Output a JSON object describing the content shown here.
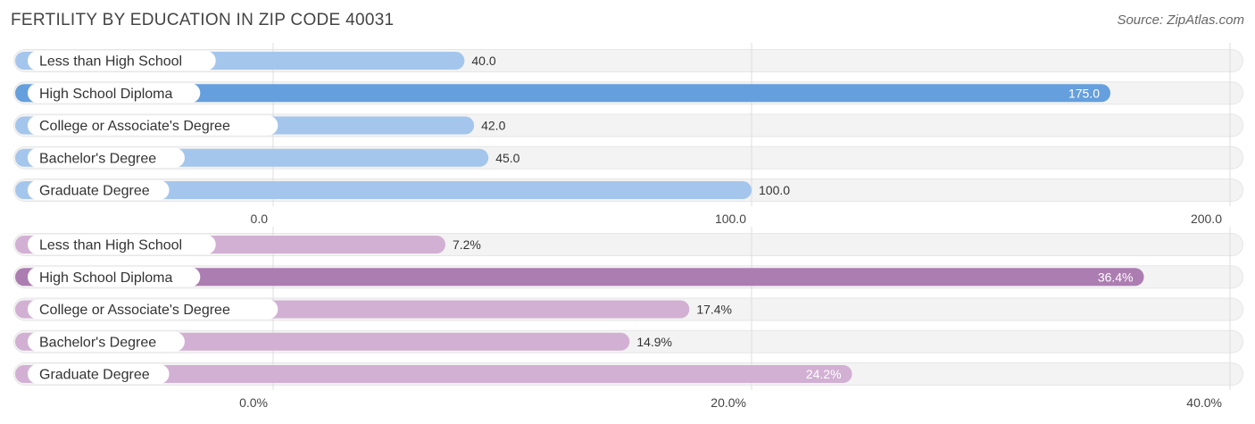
{
  "header": {
    "title": "FERTILITY BY EDUCATION IN ZIP CODE 40031",
    "source": "Source: ZipAtlas.com"
  },
  "chart_data": [
    {
      "type": "bar",
      "orientation": "horizontal",
      "categories": [
        "Less than High School",
        "High School Diploma",
        "College or Associate's Degree",
        "Bachelor's Degree",
        "Graduate Degree"
      ],
      "values": [
        40.0,
        175.0,
        42.0,
        45.0,
        100.0
      ],
      "value_labels": [
        "40.0",
        "175.0",
        "42.0",
        "45.0",
        "100.0"
      ],
      "xlim": [
        0,
        200
      ],
      "ticks": [
        0,
        100,
        200
      ],
      "tick_labels": [
        "0.0",
        "100.0",
        "200.0"
      ],
      "highlight_index": 1,
      "colors": {
        "bar": "#a5c6ec",
        "highlight": "#659fdd",
        "track": "#efefef"
      },
      "grid": true
    },
    {
      "type": "bar",
      "orientation": "horizontal",
      "categories": [
        "Less than High School",
        "High School Diploma",
        "College or Associate's Degree",
        "Bachelor's Degree",
        "Graduate Degree"
      ],
      "values": [
        7.2,
        36.4,
        17.4,
        14.9,
        24.2
      ],
      "value_labels": [
        "7.2%",
        "36.4%",
        "17.4%",
        "14.9%",
        "24.2%"
      ],
      "xlim": [
        0,
        40
      ],
      "ticks": [
        0,
        20,
        40
      ],
      "tick_labels": [
        "0.0%",
        "20.0%",
        "40.0%"
      ],
      "highlight_index": 1,
      "colors": {
        "bar": "#d2b0d3",
        "highlight": "#ac7db1",
        "track": "#efefef"
      },
      "grid": true
    }
  ]
}
